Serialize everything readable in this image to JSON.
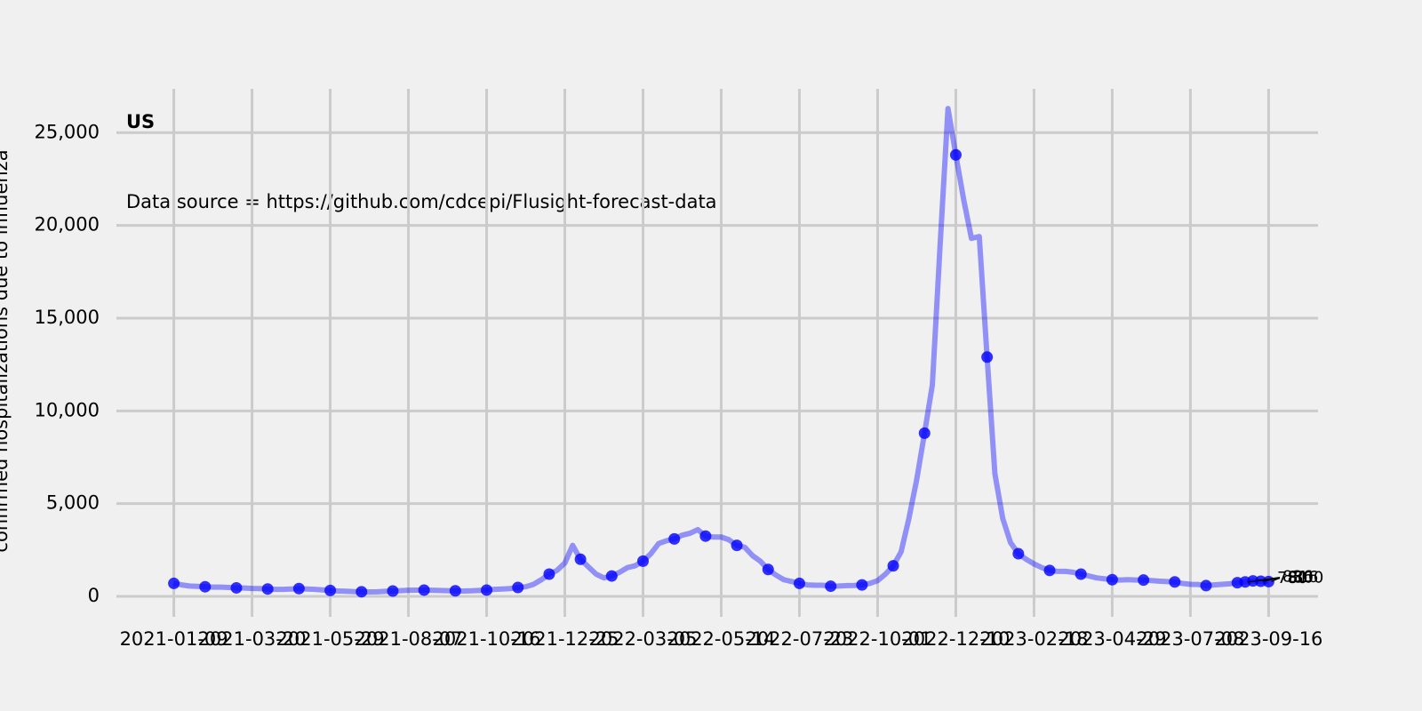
{
  "chart_data": {
    "type": "line",
    "title": "US",
    "subtitle": "Data source = https://github.com/cdcepi/Flusight-forecast-data",
    "y_label": "confirmed hospitalizations due to influenza",
    "x": [
      "2021-01-09",
      "2021-01-16",
      "2021-01-23",
      "2021-01-30",
      "2021-02-06",
      "2021-02-13",
      "2021-02-20",
      "2021-02-27",
      "2021-03-06",
      "2021-03-13",
      "2021-03-20",
      "2021-03-27",
      "2021-04-03",
      "2021-04-10",
      "2021-04-17",
      "2021-04-24",
      "2021-05-01",
      "2021-05-08",
      "2021-05-15",
      "2021-05-22",
      "2021-05-29",
      "2021-06-05",
      "2021-06-12",
      "2021-06-19",
      "2021-06-26",
      "2021-07-03",
      "2021-07-10",
      "2021-07-17",
      "2021-07-24",
      "2021-07-31",
      "2021-08-07",
      "2021-08-14",
      "2021-08-21",
      "2021-08-28",
      "2021-09-04",
      "2021-09-11",
      "2021-09-18",
      "2021-09-25",
      "2021-10-02",
      "2021-10-09",
      "2021-10-16",
      "2021-10-23",
      "2021-10-30",
      "2021-11-06",
      "2021-11-13",
      "2021-11-20",
      "2021-11-27",
      "2021-12-04",
      "2021-12-11",
      "2021-12-18",
      "2021-12-25",
      "2022-01-01",
      "2022-01-08",
      "2022-01-15",
      "2022-01-22",
      "2022-01-29",
      "2022-02-05",
      "2022-02-12",
      "2022-02-19",
      "2022-02-26",
      "2022-03-05",
      "2022-03-12",
      "2022-03-19",
      "2022-03-26",
      "2022-04-02",
      "2022-04-09",
      "2022-04-16",
      "2022-04-23",
      "2022-04-30",
      "2022-05-07",
      "2022-05-14",
      "2022-05-21",
      "2022-05-28",
      "2022-06-04",
      "2022-06-11",
      "2022-06-18",
      "2022-06-25",
      "2022-07-02",
      "2022-07-09",
      "2022-07-16",
      "2022-07-23",
      "2022-07-30",
      "2022-08-06",
      "2022-08-13",
      "2022-08-20",
      "2022-08-27",
      "2022-09-03",
      "2022-09-10",
      "2022-09-17",
      "2022-09-24",
      "2022-10-01",
      "2022-10-08",
      "2022-10-15",
      "2022-10-22",
      "2022-10-29",
      "2022-11-05",
      "2022-11-12",
      "2022-11-19",
      "2022-11-26",
      "2022-12-03",
      "2022-12-10",
      "2022-12-17",
      "2022-12-24",
      "2022-12-31",
      "2023-01-07",
      "2023-01-14",
      "2023-01-21",
      "2023-01-28",
      "2023-02-04",
      "2023-02-11",
      "2023-02-18",
      "2023-02-25",
      "2023-03-04",
      "2023-03-11",
      "2023-03-18",
      "2023-03-25",
      "2023-04-01",
      "2023-04-08",
      "2023-04-15",
      "2023-04-22",
      "2023-04-29",
      "2023-05-06",
      "2023-05-13",
      "2023-05-20",
      "2023-05-27",
      "2023-06-03",
      "2023-06-10",
      "2023-06-17",
      "2023-06-24",
      "2023-07-01",
      "2023-07-08",
      "2023-07-15",
      "2023-07-22",
      "2023-07-29",
      "2023-08-05",
      "2023-08-12",
      "2023-08-19",
      "2023-08-26",
      "2023-09-02",
      "2023-09-09",
      "2023-09-16"
    ],
    "series": [
      {
        "name": "US",
        "color": "#0000ff",
        "values": [
          700,
          620,
          560,
          540,
          520,
          500,
          500,
          480,
          460,
          450,
          430,
          420,
          400,
          380,
          380,
          400,
          420,
          400,
          380,
          350,
          320,
          290,
          280,
          260,
          250,
          240,
          250,
          270,
          290,
          310,
          330,
          340,
          340,
          330,
          320,
          310,
          300,
          290,
          300,
          320,
          340,
          380,
          400,
          420,
          480,
          520,
          650,
          900,
          1200,
          1400,
          1800,
          2750,
          2000,
          1600,
          1200,
          1000,
          1100,
          1300,
          1550,
          1650,
          1900,
          2300,
          2850,
          3000,
          3100,
          3300,
          3400,
          3600,
          3250,
          3200,
          3200,
          3050,
          2750,
          2650,
          2200,
          1900,
          1450,
          1150,
          900,
          800,
          700,
          620,
          600,
          600,
          550,
          560,
          580,
          590,
          620,
          700,
          850,
          1200,
          1650,
          2400,
          4200,
          6300,
          8800,
          11400,
          19000,
          26300,
          23800,
          21400,
          19300,
          19400,
          12900,
          6600,
          4200,
          2900,
          2300,
          2000,
          1750,
          1550,
          1400,
          1350,
          1350,
          1300,
          1200,
          1100,
          1000,
          950,
          900,
          880,
          900,
          880,
          880,
          850,
          820,
          800,
          780,
          700,
          650,
          640,
          580,
          620,
          650,
          680,
          740,
          780,
          836,
          816,
          800
        ]
      }
    ],
    "xlim": [
      "2020-11-21",
      "2023-11-04"
    ],
    "xticks": [
      "2021-01-09",
      "2021-03-20",
      "2021-05-29",
      "2021-08-07",
      "2021-10-16",
      "2021-12-25",
      "2022-03-05",
      "2022-05-14",
      "2022-07-23",
      "2022-10-01",
      "2022-12-10",
      "2023-02-18",
      "2023-04-29",
      "2023-07-08",
      "2023-09-16"
    ],
    "ylim": [
      -1100,
      27600
    ],
    "yticks": [
      0,
      {
        "value": 5000,
        "label": "5,000"
      },
      {
        "value": 10000,
        "label": "10,000"
      },
      {
        "value": 15000,
        "label": "15,000"
      },
      {
        "value": 20000,
        "label": "20,000"
      },
      {
        "value": 25000,
        "label": "25,000"
      }
    ],
    "grid": true
  }
}
